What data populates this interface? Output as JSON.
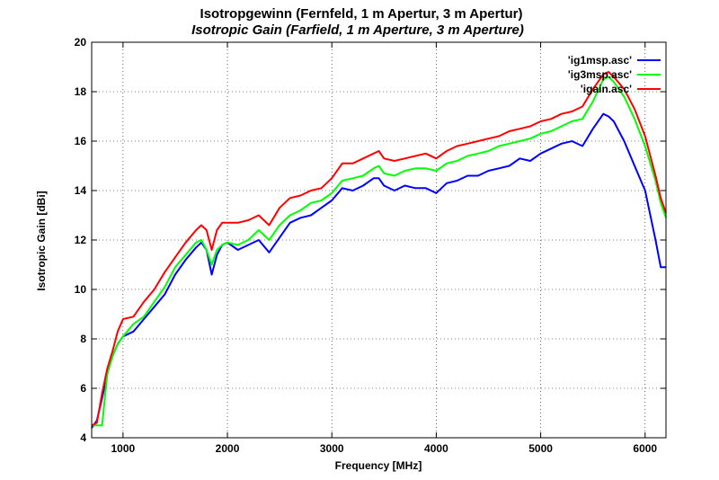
{
  "chart_data": {
    "type": "line",
    "title": "Isotropgewinn (Fernfeld, 1 m Apertur, 3 m Apertur)",
    "subtitle": "Isotropic Gain (Farfield, 1 m Aperture, 3 m Aperture)",
    "xlabel": "Frequency [MHz]",
    "ylabel": "Isotropic Gain [dBi]",
    "xlim": [
      700,
      6200
    ],
    "ylim": [
      4,
      20
    ],
    "xticks": [
      1000,
      2000,
      3000,
      4000,
      5000,
      6000
    ],
    "yticks": [
      4,
      6,
      8,
      10,
      12,
      14,
      16,
      18,
      20
    ],
    "grid": true,
    "legend_position": "top-right",
    "series": [
      {
        "name": "'ig1msp.asc'",
        "color": "#0000ff",
        "x": [
          700,
          750,
          800,
          850,
          900,
          950,
          1000,
          1100,
          1200,
          1300,
          1400,
          1500,
          1600,
          1700,
          1750,
          1800,
          1850,
          1900,
          1950,
          2000,
          2100,
          2200,
          2300,
          2400,
          2500,
          2600,
          2700,
          2800,
          2900,
          3000,
          3100,
          3200,
          3300,
          3400,
          3450,
          3500,
          3600,
          3700,
          3800,
          3900,
          4000,
          4100,
          4200,
          4300,
          4400,
          4500,
          4600,
          4700,
          4800,
          4900,
          5000,
          5100,
          5200,
          5300,
          5400,
          5500,
          5600,
          5650,
          5700,
          5800,
          5900,
          6000,
          6100,
          6150,
          6200
        ],
        "y": [
          4.4,
          4.7,
          5.6,
          6.6,
          7.3,
          7.8,
          8.1,
          8.3,
          8.8,
          9.3,
          9.8,
          10.6,
          11.2,
          11.7,
          11.9,
          11.6,
          10.6,
          11.4,
          11.8,
          11.9,
          11.6,
          11.8,
          12.0,
          11.5,
          12.1,
          12.7,
          12.9,
          13.0,
          13.3,
          13.6,
          14.1,
          14.0,
          14.2,
          14.5,
          14.5,
          14.2,
          14.0,
          14.2,
          14.1,
          14.1,
          13.9,
          14.3,
          14.4,
          14.6,
          14.6,
          14.8,
          14.9,
          15.0,
          15.3,
          15.2,
          15.5,
          15.7,
          15.9,
          16.0,
          15.8,
          16.5,
          17.1,
          17.0,
          16.8,
          16.0,
          15.0,
          14.0,
          12.0,
          10.9,
          10.9
        ]
      },
      {
        "name": "'ig3msp.asc'",
        "color": "#00ff00",
        "x": [
          700,
          750,
          800,
          850,
          900,
          950,
          1000,
          1100,
          1200,
          1300,
          1400,
          1500,
          1600,
          1700,
          1750,
          1800,
          1850,
          1900,
          1950,
          2000,
          2100,
          2200,
          2300,
          2400,
          2500,
          2600,
          2700,
          2800,
          2900,
          3000,
          3100,
          3200,
          3300,
          3400,
          3450,
          3500,
          3600,
          3700,
          3800,
          3900,
          4000,
          4100,
          4200,
          4300,
          4400,
          4500,
          4600,
          4700,
          4800,
          4900,
          5000,
          5100,
          5200,
          5300,
          5400,
          5500,
          5600,
          5650,
          5700,
          5800,
          5900,
          6000,
          6100,
          6150,
          6200
        ],
        "y": [
          4.5,
          4.5,
          4.5,
          6.6,
          7.3,
          7.8,
          8.1,
          8.6,
          8.9,
          9.5,
          10.1,
          10.9,
          11.4,
          11.9,
          12.0,
          11.6,
          11.0,
          11.6,
          11.8,
          11.9,
          11.8,
          12.0,
          12.4,
          12.0,
          12.6,
          13.0,
          13.2,
          13.5,
          13.6,
          13.9,
          14.4,
          14.5,
          14.6,
          14.9,
          15.0,
          14.7,
          14.6,
          14.8,
          14.9,
          14.9,
          14.8,
          15.1,
          15.2,
          15.4,
          15.5,
          15.6,
          15.8,
          15.9,
          16.0,
          16.1,
          16.3,
          16.4,
          16.6,
          16.8,
          16.9,
          17.6,
          18.5,
          18.6,
          18.4,
          17.8,
          16.9,
          15.8,
          14.4,
          13.5,
          12.9
        ]
      },
      {
        "name": "'igain.asc'",
        "color": "#ff0000",
        "x": [
          700,
          750,
          800,
          850,
          900,
          950,
          1000,
          1100,
          1200,
          1300,
          1400,
          1500,
          1600,
          1700,
          1750,
          1800,
          1850,
          1900,
          1950,
          2000,
          2100,
          2200,
          2300,
          2400,
          2500,
          2600,
          2700,
          2800,
          2900,
          3000,
          3100,
          3200,
          3300,
          3400,
          3450,
          3500,
          3600,
          3700,
          3800,
          3900,
          4000,
          4100,
          4200,
          4300,
          4400,
          4500,
          4600,
          4700,
          4800,
          4900,
          5000,
          5100,
          5200,
          5300,
          5400,
          5500,
          5600,
          5650,
          5700,
          5800,
          5900,
          6000,
          6100,
          6150,
          6200
        ],
        "y": [
          4.5,
          4.6,
          5.8,
          6.8,
          7.5,
          8.3,
          8.8,
          8.9,
          9.5,
          10.0,
          10.7,
          11.3,
          11.9,
          12.4,
          12.6,
          12.4,
          11.6,
          12.4,
          12.7,
          12.7,
          12.7,
          12.8,
          13.0,
          12.6,
          13.3,
          13.7,
          13.8,
          14.0,
          14.1,
          14.5,
          15.1,
          15.1,
          15.3,
          15.5,
          15.6,
          15.3,
          15.2,
          15.3,
          15.4,
          15.5,
          15.3,
          15.6,
          15.8,
          15.9,
          16.0,
          16.1,
          16.2,
          16.4,
          16.5,
          16.6,
          16.8,
          16.9,
          17.1,
          17.2,
          17.4,
          18.1,
          18.7,
          18.8,
          18.6,
          18.1,
          17.3,
          16.2,
          14.6,
          13.7,
          13.1
        ]
      }
    ]
  }
}
